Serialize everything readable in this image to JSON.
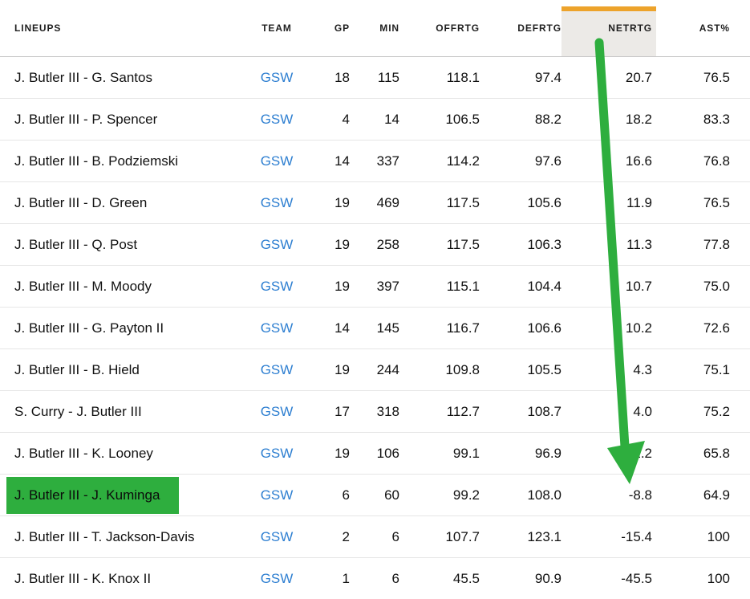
{
  "table": {
    "columns": [
      {
        "key": "lineup",
        "label": "LINEUPS",
        "align": "left",
        "sorted": false
      },
      {
        "key": "team",
        "label": "TEAM",
        "align": "center",
        "sorted": false
      },
      {
        "key": "gp",
        "label": "GP",
        "align": "right",
        "sorted": false
      },
      {
        "key": "min",
        "label": "MIN",
        "align": "right",
        "sorted": false
      },
      {
        "key": "offrtg",
        "label": "OFFRTG",
        "align": "right",
        "sorted": false
      },
      {
        "key": "defrtg",
        "label": "DEFRTG",
        "align": "right",
        "sorted": false
      },
      {
        "key": "netrtg",
        "label": "NETRTG",
        "align": "right",
        "sorted": true
      },
      {
        "key": "astpct",
        "label": "AST%",
        "align": "right",
        "sorted": false
      }
    ],
    "rows": [
      {
        "lineup": "J. Butler III - G. Santos",
        "team": "GSW",
        "gp": "18",
        "min": "115",
        "offrtg": "118.1",
        "defrtg": "97.4",
        "netrtg": "20.7",
        "astpct": "76.5",
        "highlighted": false
      },
      {
        "lineup": "J. Butler III - P. Spencer",
        "team": "GSW",
        "gp": "4",
        "min": "14",
        "offrtg": "106.5",
        "defrtg": "88.2",
        "netrtg": "18.2",
        "astpct": "83.3",
        "highlighted": false
      },
      {
        "lineup": "J. Butler III - B. Podziemski",
        "team": "GSW",
        "gp": "14",
        "min": "337",
        "offrtg": "114.2",
        "defrtg": "97.6",
        "netrtg": "16.6",
        "astpct": "76.8",
        "highlighted": false
      },
      {
        "lineup": "J. Butler III - D. Green",
        "team": "GSW",
        "gp": "19",
        "min": "469",
        "offrtg": "117.5",
        "defrtg": "105.6",
        "netrtg": "11.9",
        "astpct": "76.5",
        "highlighted": false
      },
      {
        "lineup": "J. Butler III - Q. Post",
        "team": "GSW",
        "gp": "19",
        "min": "258",
        "offrtg": "117.5",
        "defrtg": "106.3",
        "netrtg": "11.3",
        "astpct": "77.8",
        "highlighted": false
      },
      {
        "lineup": "J. Butler III - M. Moody",
        "team": "GSW",
        "gp": "19",
        "min": "397",
        "offrtg": "115.1",
        "defrtg": "104.4",
        "netrtg": "10.7",
        "astpct": "75.0",
        "highlighted": false
      },
      {
        "lineup": "J. Butler III - G. Payton II",
        "team": "GSW",
        "gp": "14",
        "min": "145",
        "offrtg": "116.7",
        "defrtg": "106.6",
        "netrtg": "10.2",
        "astpct": "72.6",
        "highlighted": false
      },
      {
        "lineup": "J. Butler III - B. Hield",
        "team": "GSW",
        "gp": "19",
        "min": "244",
        "offrtg": "109.8",
        "defrtg": "105.5",
        "netrtg": "4.3",
        "astpct": "75.1",
        "highlighted": false
      },
      {
        "lineup": "S. Curry - J. Butler III",
        "team": "GSW",
        "gp": "17",
        "min": "318",
        "offrtg": "112.7",
        "defrtg": "108.7",
        "netrtg": "4.0",
        "astpct": "75.2",
        "highlighted": false
      },
      {
        "lineup": "J. Butler III - K. Looney",
        "team": "GSW",
        "gp": "19",
        "min": "106",
        "offrtg": "99.1",
        "defrtg": "96.9",
        "netrtg": "2.2",
        "astpct": "65.8",
        "highlighted": false
      },
      {
        "lineup": "J. Butler III - J. Kuminga",
        "team": "GSW",
        "gp": "6",
        "min": "60",
        "offrtg": "99.2",
        "defrtg": "108.0",
        "netrtg": "-8.8",
        "astpct": "64.9",
        "highlighted": true
      },
      {
        "lineup": "J. Butler III - T. Jackson-Davis",
        "team": "GSW",
        "gp": "2",
        "min": "6",
        "offrtg": "107.7",
        "defrtg": "123.1",
        "netrtg": "-15.4",
        "astpct": "100",
        "highlighted": false
      },
      {
        "lineup": "J. Butler III - K. Knox II",
        "team": "GSW",
        "gp": "1",
        "min": "6",
        "offrtg": "45.5",
        "defrtg": "90.9",
        "netrtg": "-45.5",
        "astpct": "100",
        "highlighted": false
      }
    ]
  },
  "annotations": {
    "sorted_column": "NETRTG",
    "sort_accent_color": "#eda32b",
    "sort_header_bg": "#eceae7",
    "arrow": {
      "shape": "down-arrow",
      "color": "#2eae3e",
      "from": "NETRTG header",
      "to": "-8.8 value"
    },
    "row_highlight": {
      "row": "J. Butler III - J. Kuminga",
      "color": "#2eae3e"
    }
  },
  "colors": {
    "team_link": "#2e7fd1",
    "row_border": "#e6e6e6",
    "header_border": "#c9c9c9",
    "background": "#ffffff"
  }
}
